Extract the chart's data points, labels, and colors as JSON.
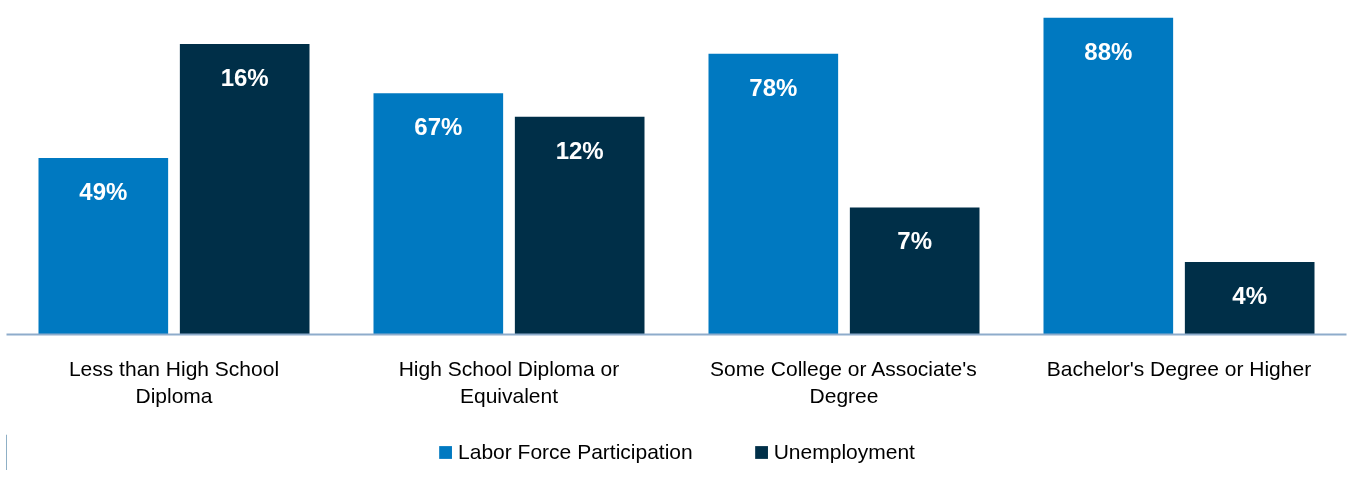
{
  "chart_data": {
    "type": "bar",
    "categories": [
      "Less than High School Diploma",
      "High School Diploma or Equivalent",
      "Some College or Associate's Degree",
      "Bachelor's Degree or Higher"
    ],
    "series": [
      {
        "name": "Labor Force Participation",
        "color": "#0079c1",
        "values": [
          49,
          67,
          78,
          88
        ],
        "value_labels": [
          "49%",
          "67%",
          "78%",
          "88%"
        ]
      },
      {
        "name": "Unemployment",
        "color": "#002f48",
        "values": [
          16,
          12,
          7,
          4
        ],
        "value_labels": [
          "16%",
          "12%",
          "7%",
          "4%"
        ],
        "axis": "y2"
      }
    ],
    "legend": "bottom",
    "tick_labels": "x"
  }
}
